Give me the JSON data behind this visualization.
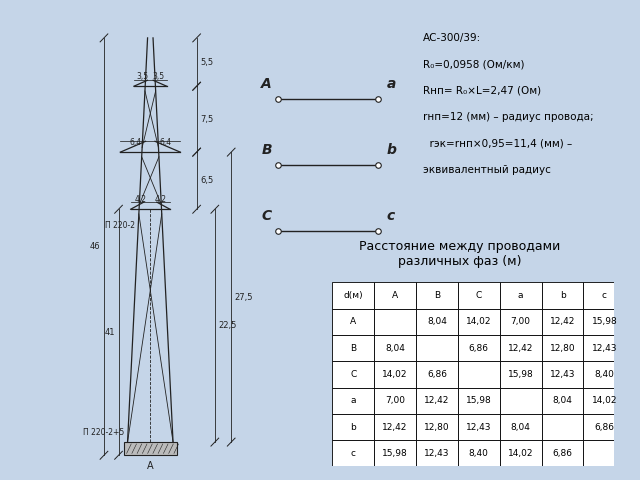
{
  "bg_color": "#c5d5e8",
  "panel_color": "#ffffff",
  "title_table": "Расстояние между проводами\nразличных фаз (м)",
  "col_headers": [
    "d(м)",
    "А",
    "В",
    "С",
    "а",
    "b",
    "с"
  ],
  "row_headers": [
    "А",
    "В",
    "С",
    "а",
    "b",
    "с"
  ],
  "table_data": [
    [
      "",
      "8,04",
      "14,02",
      "7,00",
      "12,42",
      "15,98"
    ],
    [
      "8,04",
      "",
      "6,86",
      "12,42",
      "12,80",
      "12,43"
    ],
    [
      "14,02",
      "6,86",
      "",
      "15,98",
      "12,43",
      "8,40"
    ],
    [
      "7,00",
      "12,42",
      "15,98",
      "",
      "8,04",
      "14,02"
    ],
    [
      "12,42",
      "12,80",
      "12,43",
      "8,04",
      "",
      "6,86"
    ],
    [
      "15,98",
      "12,43",
      "8,40",
      "14,02",
      "6,86",
      ""
    ]
  ],
  "phases": [
    {
      "left": "А",
      "right": "а"
    },
    {
      "left": "В",
      "right": "b"
    },
    {
      "left": "С",
      "right": "с"
    }
  ],
  "info_lines": [
    "АС-300/39:",
    "R₀=0,0958 (Ом/км)",
    "Rнп= R₀×L=2,47 (Ом)",
    "rнп=12 (мм) – радиус провода;",
    "  rэк=rнп×0,95=11,4 (мм) –",
    "эквивалентный радиус"
  ]
}
